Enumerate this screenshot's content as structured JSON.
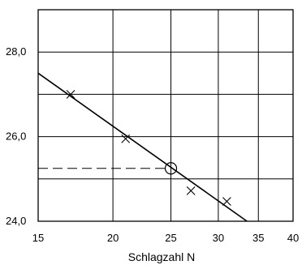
{
  "chart_data": {
    "type": "scatter",
    "title": "",
    "xlabel": "Schlagzahl N",
    "ylabel": "",
    "x_scale": "log",
    "xlim": [
      15,
      40
    ],
    "ylim": [
      24.0,
      29.0
    ],
    "x_ticks": [
      15,
      20,
      25,
      30,
      35,
      40
    ],
    "x_tick_labels": [
      "15",
      "20",
      "25",
      "30",
      "35",
      "40"
    ],
    "y_ticks": [
      24.0,
      26.0,
      28.0
    ],
    "y_tick_labels": [
      "24,0",
      "26,0",
      "28,0"
    ],
    "grid": true,
    "series": [
      {
        "marker": "x",
        "points": [
          {
            "x": 17,
            "y": 27.0
          },
          {
            "x": 21,
            "y": 25.95
          },
          {
            "x": 27,
            "y": 24.72
          },
          {
            "x": 31,
            "y": 24.47
          }
        ]
      }
    ],
    "fit_line": {
      "x": [
        15,
        33.5
      ],
      "y": [
        27.5,
        24.0
      ]
    },
    "highlight": {
      "marker": "circle",
      "x": 25,
      "y": 25.25,
      "dashed_guide_to_y_axis": true
    }
  }
}
